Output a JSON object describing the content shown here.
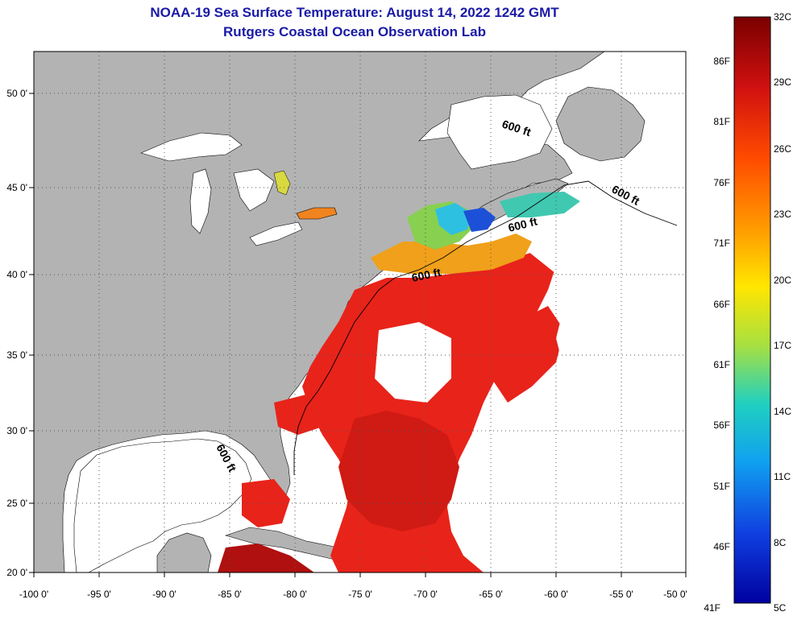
{
  "title": {
    "line1": "NOAA-19 Sea Surface Temperature:  August 14, 2022 1242 GMT",
    "line2": "Rutgers Coastal Ocean Observation Lab"
  },
  "map": {
    "lon_ticks": [
      "-100 0'",
      "-95 0'",
      "-90 0'",
      "-85 0'",
      "-80 0'",
      "-75 0'",
      "-70 0'",
      "-65 0'",
      "-60 0'",
      "-55 0'",
      "-50 0'"
    ],
    "lat_ticks": [
      "50 0'",
      "45 0'",
      "40 0'",
      "35 0'",
      "30 0'",
      "25 0'",
      "20 0'"
    ],
    "contour_label": "600 ft",
    "colors": {
      "land": "#b3b3b3",
      "no_data": "#ffffff",
      "warm_sst": "#e8231a",
      "hot_sst": "#b01010",
      "grid": "#444444"
    }
  },
  "colorbar": {
    "celsius": [
      "32C",
      "29C",
      "26C",
      "23C",
      "20C",
      "17C",
      "14C",
      "11C",
      "8C",
      "5C"
    ],
    "fahrenheit": [
      "86F",
      "81F",
      "76F",
      "71F",
      "66F",
      "61F",
      "56F",
      "51F",
      "46F",
      "41F"
    ],
    "stops": [
      "#7a0000",
      "#d01010",
      "#ff4a00",
      "#ff9a00",
      "#ffe600",
      "#a8e040",
      "#20d0c0",
      "#10a0f0",
      "#1040e0",
      "#0000a0"
    ]
  }
}
